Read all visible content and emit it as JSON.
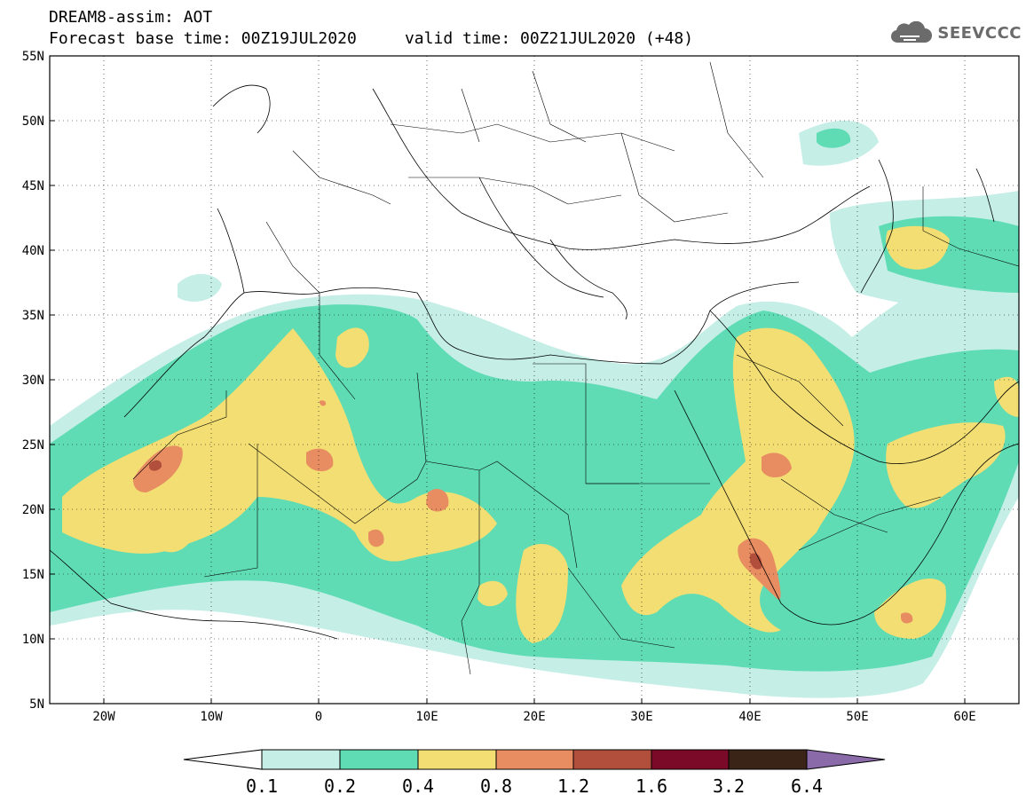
{
  "header": {
    "line1": "DREAM8-assim: AOT",
    "line2": "Forecast base time: 00Z19JUL2020     valid time: 00Z21JUL2020 (+48)"
  },
  "logo": {
    "text": "SEEVCCC",
    "icon": "cloud-logo-icon"
  },
  "map": {
    "lat_labels": [
      "55N",
      "50N",
      "45N",
      "40N",
      "35N",
      "30N",
      "25N",
      "20N",
      "15N",
      "10N",
      "5N"
    ],
    "lon_labels": [
      "20W",
      "10W",
      "0",
      "10E",
      "20E",
      "30E",
      "40E",
      "50E",
      "60E"
    ],
    "grid": "dotted"
  },
  "colorbar": {
    "levels": [
      "0.1",
      "0.2",
      "0.4",
      "0.8",
      "1.2",
      "1.6",
      "3.2",
      "6.4"
    ],
    "colors": [
      "#c4eee6",
      "#5fdcb4",
      "#f2de72",
      "#e88c62",
      "#b24f3c",
      "#7a0a28",
      "#3a2418",
      "#8a6aa8"
    ],
    "below_color": "#ffffff"
  }
}
